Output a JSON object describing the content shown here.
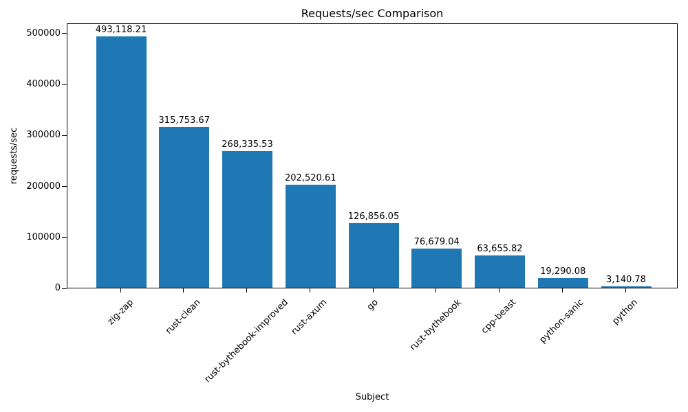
{
  "chart_data": {
    "type": "bar",
    "title": "Requests/sec Comparison",
    "xlabel": "Subject",
    "ylabel": "requests/sec",
    "categories": [
      "zig-zap",
      "rust-clean",
      "rust-bythebook-improved",
      "rust-axum",
      "go",
      "rust-bythebook",
      "cpp-beast",
      "python-sanic",
      "python"
    ],
    "values": [
      493118.21,
      315753.67,
      268335.53,
      202520.61,
      126856.05,
      76679.04,
      63655.82,
      19290.08,
      3140.78
    ],
    "value_labels": [
      "493,118.21",
      "315,753.67",
      "268,335.53",
      "202,520.61",
      "126,856.05",
      "76,679.04",
      "63,655.82",
      "19,290.08",
      "3,140.78"
    ],
    "yticks": [
      0,
      100000,
      200000,
      300000,
      400000,
      500000
    ],
    "ytick_labels": [
      "0",
      "100000",
      "200000",
      "300000",
      "400000",
      "500000"
    ],
    "ylim": [
      0,
      520000
    ],
    "bar_color": "#1f77b4",
    "grid": false,
    "legend_position": "none",
    "x_tick_rotation_deg": 45
  }
}
